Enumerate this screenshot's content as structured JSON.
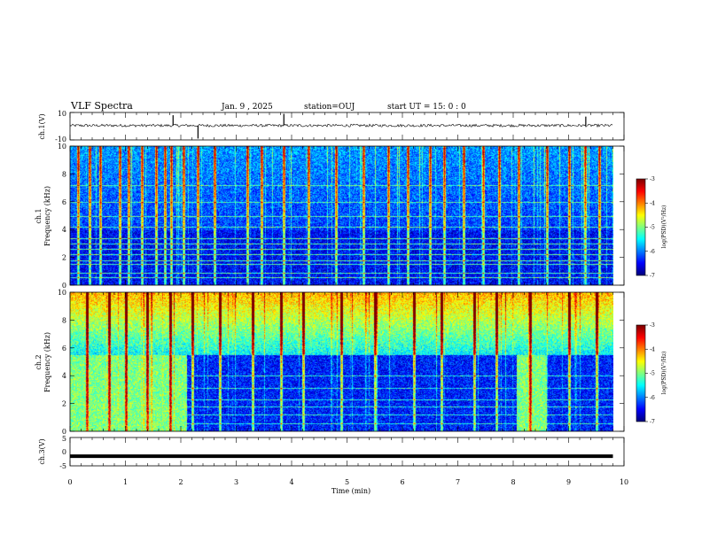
{
  "header": {
    "title": "VLF Spectra",
    "date": "Jan. 9 , 2025",
    "station": "station=OUJ",
    "start_time": "start UT = 15: 0 : 0"
  },
  "xaxis": {
    "label": "Time (min)",
    "range": [
      0,
      10
    ],
    "ticks": [
      "0",
      "1",
      "2",
      "3",
      "4",
      "5",
      "6",
      "7",
      "8",
      "9",
      "10"
    ]
  },
  "colorbar": {
    "label": "log(PSD)(V²/Hz)",
    "range": [
      -7,
      -3
    ],
    "ticks": [
      "-3",
      "-4",
      "-5",
      "-6",
      "-7"
    ],
    "colors": [
      "#00007f",
      "#0000ff",
      "#0080ff",
      "#00ffff",
      "#80ff80",
      "#ffff00",
      "#ff8000",
      "#ff0000",
      "#7f0000"
    ]
  },
  "chart_data": [
    {
      "type": "line",
      "panel": "ch1-waveform",
      "ylabel": "ch.1(V)",
      "ylim": [
        -10,
        10
      ],
      "y_ticks": [
        "10",
        "-10"
      ],
      "series": [
        {
          "x": [
            0,
            1.85,
            1.86,
            2.3,
            2.31,
            3.85,
            3.86,
            9.3,
            9.31,
            9.8
          ],
          "y": [
            0.5,
            0.5,
            8,
            0.5,
            -9,
            0.5,
            9,
            0.5,
            7,
            0.5
          ]
        }
      ],
      "grid": false
    },
    {
      "type": "heatmap",
      "panel": "ch1-spectrogram",
      "ylabel": "ch.1\nFrequency (kHz)",
      "ylim": [
        0,
        10
      ],
      "y_ticks": [
        "0",
        "2",
        "4",
        "6",
        "8",
        "10"
      ],
      "data_end_min": 9.8,
      "zrange": [
        -7,
        -3
      ],
      "features": {
        "background_level": -6.5,
        "upper_band_khz": [
          4,
          10
        ],
        "upper_band_level": -5.9,
        "spheric_times_min": [
          0.15,
          0.35,
          0.55,
          0.9,
          1.05,
          1.3,
          1.55,
          1.72,
          1.83,
          2.05,
          2.3,
          2.6,
          3.2,
          3.45,
          3.85,
          4.3,
          4.8,
          5.3,
          5.75,
          6.1,
          6.5,
          6.75,
          7.1,
          7.45,
          7.75,
          8.1,
          8.6,
          9.0,
          9.3,
          9.55
        ],
        "spheric_level": -3.6,
        "narrowband_khz": [
          0.6,
          0.9,
          1.5,
          1.8,
          2.2,
          2.6,
          3.0,
          3.4,
          4.2,
          5.0,
          6.0,
          7.2
        ],
        "narrowband_level": -5.2
      }
    },
    {
      "type": "heatmap",
      "panel": "ch2-spectrogram",
      "ylabel": "ch.2\nFrequency (kHz)",
      "ylim": [
        0,
        10
      ],
      "y_ticks": [
        "0",
        "2",
        "4",
        "6",
        "8",
        "10"
      ],
      "data_end_min": 9.8,
      "zrange": [
        -7,
        -3
      ],
      "features": {
        "background_level": -6.4,
        "upper_band_khz": [
          5.5,
          10
        ],
        "upper_band_level": -4.2,
        "enhanced_intervals_min": [
          [
            0,
            2.1
          ],
          [
            8.05,
            8.6
          ]
        ],
        "enhanced_level": -5.0,
        "spheric_times_min": [
          0.3,
          0.7,
          1.0,
          1.4,
          1.8,
          2.2,
          2.7,
          3.3,
          3.8,
          4.2,
          4.9,
          5.5,
          6.2,
          6.7,
          7.3,
          7.7,
          8.3,
          9.0,
          9.5
        ],
        "spheric_level": -3.4,
        "narrowband_khz": [
          0.6,
          1.2,
          1.8,
          2.3,
          3.1,
          4.0
        ],
        "narrowband_level": -5.4
      }
    },
    {
      "type": "line",
      "panel": "ch3-waveform",
      "ylabel": "ch.3(V)",
      "ylim": [
        -5,
        5
      ],
      "y_ticks": [
        "5",
        "0",
        "-5"
      ],
      "series": [
        {
          "x": [
            0,
            9.8
          ],
          "y": [
            -1.6,
            -1.6
          ]
        }
      ],
      "grid": false
    }
  ]
}
